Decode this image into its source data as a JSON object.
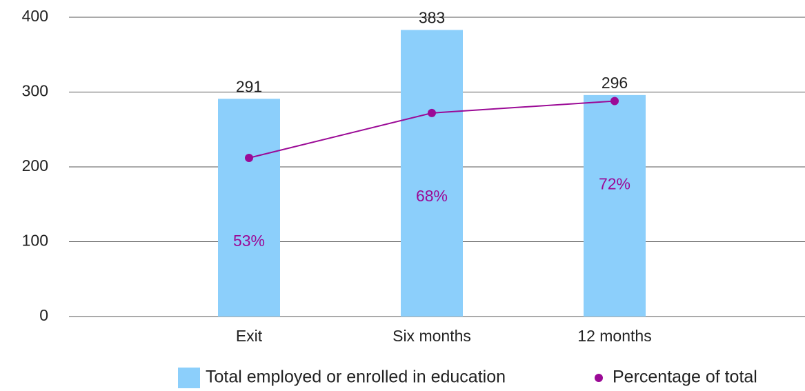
{
  "chart_data": {
    "type": "bar_line",
    "categories": [
      "Exit",
      "Six months",
      "12 months"
    ],
    "series": [
      {
        "name": "Total employed or enrolled in education",
        "type": "bar",
        "color": "#8ccffb",
        "values": [
          291,
          383,
          296
        ]
      },
      {
        "name": "Percentage of total",
        "type": "line",
        "axis": "y2",
        "color": "#9b0a96",
        "values": [
          53,
          68,
          72
        ],
        "value_labels": [
          "53%",
          "68%",
          "72%"
        ]
      }
    ],
    "ylim": [
      0,
      400
    ],
    "yticks": [
      0,
      100,
      200,
      300,
      400
    ],
    "y2lim": [
      0,
      100
    ],
    "grid": true,
    "legend": "bottom"
  }
}
